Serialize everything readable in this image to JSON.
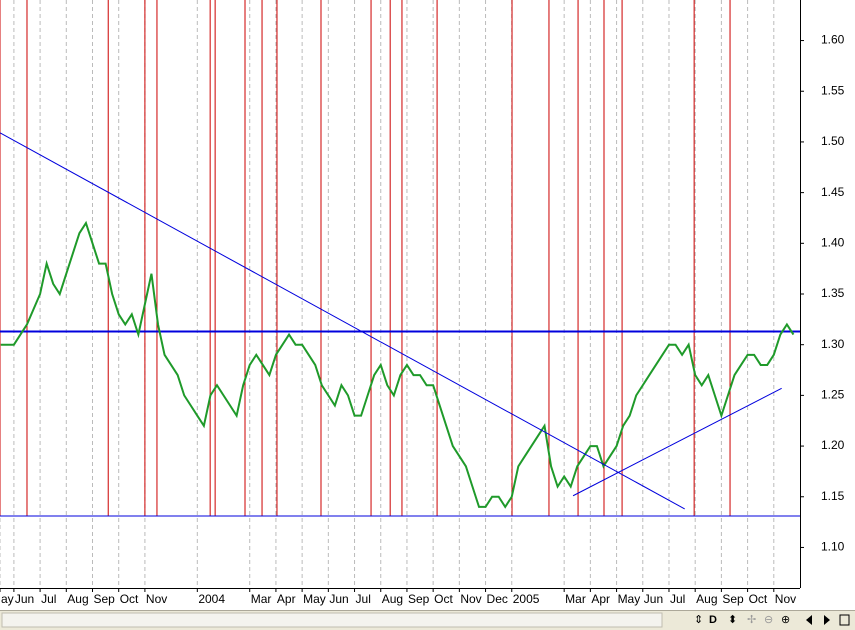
{
  "chart_data": {
    "type": "line",
    "x": [
      0.5,
      1,
      1.5,
      2,
      2.25,
      2.5,
      2.75,
      3,
      3.25,
      3.5,
      3.75,
      4,
      4.25,
      4.5,
      4.75,
      5,
      5.25,
      5.5,
      5.75,
      6,
      6.25,
      6.5,
      6.75,
      7,
      7.25,
      7.5,
      7.75,
      8,
      8.25,
      8.5,
      8.75,
      9,
      9.25,
      9.5,
      9.75,
      10,
      10.25,
      10.5,
      10.75,
      11,
      11.25,
      11.5,
      11.75,
      12,
      12.25,
      12.5,
      12.75,
      13,
      13.25,
      13.5,
      13.75,
      14,
      14.25,
      14.5,
      14.75,
      15,
      15.25,
      15.5,
      15.75,
      16,
      16.25,
      16.5,
      16.75,
      17,
      17.25,
      17.5,
      17.75,
      18,
      18.25,
      18.5,
      18.75,
      19,
      19.25,
      19.5,
      19.75,
      20,
      20.25,
      20.5,
      20.75,
      21,
      21.25,
      21.5,
      21.75,
      22,
      22.25,
      22.5,
      22.75,
      23,
      23.25,
      23.5,
      23.75,
      24,
      24.25,
      24.5,
      24.75,
      25,
      25.25,
      25.5,
      25.75,
      26,
      26.25,
      26.5,
      26.75,
      27,
      27.25,
      27.5,
      27.75,
      28,
      28.25,
      28.5,
      28.75,
      29,
      29.25,
      29.5,
      29.75,
      30,
      30.25,
      30.5,
      30.75
    ],
    "series": [
      {
        "color": "#1f9a2a",
        "values": [
          1.3,
          1.3,
          1.32,
          1.35,
          1.38,
          1.36,
          1.35,
          1.37,
          1.39,
          1.41,
          1.42,
          1.4,
          1.38,
          1.38,
          1.35,
          1.33,
          1.32,
          1.33,
          1.31,
          1.34,
          1.37,
          1.32,
          1.29,
          1.28,
          1.27,
          1.25,
          1.24,
          1.23,
          1.22,
          1.25,
          1.26,
          1.25,
          1.24,
          1.23,
          1.26,
          1.28,
          1.29,
          1.28,
          1.27,
          1.29,
          1.3,
          1.31,
          1.3,
          1.3,
          1.29,
          1.28,
          1.26,
          1.25,
          1.24,
          1.26,
          1.25,
          1.23,
          1.23,
          1.25,
          1.27,
          1.28,
          1.26,
          1.25,
          1.27,
          1.28,
          1.27,
          1.27,
          1.26,
          1.26,
          1.24,
          1.22,
          1.2,
          1.19,
          1.18,
          1.16,
          1.14,
          1.14,
          1.15,
          1.15,
          1.14,
          1.15,
          1.18,
          1.19,
          1.2,
          1.21,
          1.22,
          1.18,
          1.16,
          1.17,
          1.16,
          1.18,
          1.19,
          1.2,
          1.2,
          1.18,
          1.19,
          1.2,
          1.22,
          1.23,
          1.25,
          1.26,
          1.27,
          1.28,
          1.29,
          1.3,
          1.3,
          1.29,
          1.3,
          1.27,
          1.26,
          1.27,
          1.25,
          1.23,
          1.25,
          1.27,
          1.28,
          1.29,
          1.29,
          1.28,
          1.28,
          1.29,
          1.31,
          1.32,
          1.31
        ]
      }
    ],
    "xlim": [
      0.47,
      31.0
    ],
    "xticks": [
      {
        "value": 0.47,
        "label": "ay"
      },
      {
        "value": 1,
        "label": "Jun"
      },
      {
        "value": 2,
        "label": "Jul"
      },
      {
        "value": 3,
        "label": "Aug"
      },
      {
        "value": 4,
        "label": "Sep"
      },
      {
        "value": 5,
        "label": "Oct"
      },
      {
        "value": 6,
        "label": "Nov"
      },
      {
        "value": 8,
        "label": "2004"
      },
      {
        "value": 10,
        "label": "Mar"
      },
      {
        "value": 11,
        "label": "Apr"
      },
      {
        "value": 12,
        "label": "May"
      },
      {
        "value": 13,
        "label": "Jun"
      },
      {
        "value": 14,
        "label": "Jul"
      },
      {
        "value": 15,
        "label": "Aug"
      },
      {
        "value": 16,
        "label": "Sep"
      },
      {
        "value": 17,
        "label": "Oct"
      },
      {
        "value": 18,
        "label": "Nov"
      },
      {
        "value": 19,
        "label": "Dec"
      },
      {
        "value": 20,
        "label": "2005"
      },
      {
        "value": 22,
        "label": "Mar"
      },
      {
        "value": 23,
        "label": "Apr"
      },
      {
        "value": 24,
        "label": "May"
      },
      {
        "value": 25,
        "label": "Jun"
      },
      {
        "value": 26,
        "label": "Jul"
      },
      {
        "value": 27,
        "label": "Aug"
      },
      {
        "value": 28,
        "label": "Sep"
      },
      {
        "value": 29,
        "label": "Oct"
      },
      {
        "value": 30,
        "label": "Nov"
      }
    ],
    "ylim": [
      1.06,
      1.64
    ],
    "yticks": [
      {
        "value": 1.1,
        "label": "1.10"
      },
      {
        "value": 1.15,
        "label": "1.15"
      },
      {
        "value": 1.2,
        "label": "1.20"
      },
      {
        "value": 1.25,
        "label": "1.25"
      },
      {
        "value": 1.3,
        "label": "1.30"
      },
      {
        "value": 1.35,
        "label": "1.35"
      },
      {
        "value": 1.4,
        "label": "1.40"
      },
      {
        "value": 1.45,
        "label": "1.45"
      },
      {
        "value": 1.5,
        "label": "1.50"
      },
      {
        "value": 1.55,
        "label": "1.55"
      },
      {
        "value": 1.6,
        "label": "1.60"
      }
    ],
    "grid": true,
    "levels": [
      {
        "value": 1.313,
        "color": "#0000dd"
      },
      {
        "value": 1.131,
        "color": "#0000dd"
      }
    ],
    "trendlines": [
      {
        "color": "#0000dd",
        "x": [
          0.47,
          26.6
        ],
        "y": [
          1.509,
          1.138
        ]
      },
      {
        "color": "#0000dd",
        "x": [
          22.34,
          30.3
        ],
        "y": [
          1.151,
          1.257
        ]
      }
    ],
    "signal": {
      "color": "#cc0000",
      "level": 1.131,
      "zones": [
        [
          0.47,
          1.5
        ],
        [
          4.6,
          6.0
        ],
        [
          6.46,
          8.49
        ],
        [
          8.68,
          9.82
        ],
        [
          10.47,
          11.04
        ],
        [
          12.72,
          14.63
        ],
        [
          15.36,
          15.81
        ],
        [
          17.15,
          20.01
        ],
        [
          21.42,
          22.53
        ],
        [
          23.52,
          24.21
        ],
        [
          26.96,
          28.33
        ]
      ]
    }
  },
  "toolbar": {
    "mode_label": "D"
  }
}
